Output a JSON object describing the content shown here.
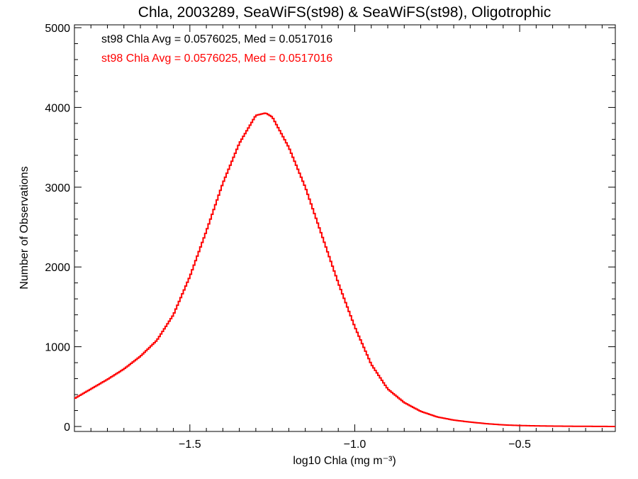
{
  "chart_data": {
    "type": "line",
    "title": "Chla, 2003289, SeaWiFS(st98) & SeaWiFS(st98), Oligotrophic",
    "xlabel": "log10 Chla (mg m⁻³)",
    "ylabel": "Number of Observations",
    "xlim": [
      -1.85,
      -0.21
    ],
    "ylim": [
      0,
      5000
    ],
    "xticks": [
      -1.5,
      -1.0,
      -0.5
    ],
    "xtick_labels": [
      "−1.5",
      "−1.0",
      "−0.5"
    ],
    "yticks": [
      0,
      1000,
      2000,
      3000,
      4000,
      5000
    ],
    "ytick_labels": [
      "0",
      "1000",
      "2000",
      "3000",
      "4000",
      "5000"
    ],
    "grid": false,
    "annotations": [
      {
        "text": "st98 Chla Avg = 0.0576025, Med = 0.0517016",
        "color": "#000000"
      },
      {
        "text": "st98 Chla Avg = 0.0576025, Med = 0.0517016",
        "color": "#ff0000"
      }
    ],
    "series": [
      {
        "color": "#ff0000",
        "x": [
          -1.85,
          -1.8,
          -1.75,
          -1.7,
          -1.65,
          -1.6,
          -1.55,
          -1.5,
          -1.45,
          -1.4,
          -1.35,
          -1.3,
          -1.27,
          -1.25,
          -1.2,
          -1.15,
          -1.1,
          -1.05,
          -1.0,
          -0.95,
          -0.9,
          -0.85,
          -0.8,
          -0.75,
          -0.7,
          -0.65,
          -0.6,
          -0.55,
          -0.5,
          -0.45,
          -0.4,
          -0.35,
          -0.3,
          -0.25,
          -0.21
        ],
        "y": [
          350,
          470,
          590,
          720,
          880,
          1080,
          1400,
          1880,
          2450,
          3050,
          3550,
          3900,
          3930,
          3880,
          3500,
          3000,
          2400,
          1800,
          1250,
          780,
          470,
          300,
          190,
          120,
          80,
          55,
          35,
          20,
          12,
          8,
          5,
          3,
          2,
          1,
          0
        ]
      }
    ]
  }
}
